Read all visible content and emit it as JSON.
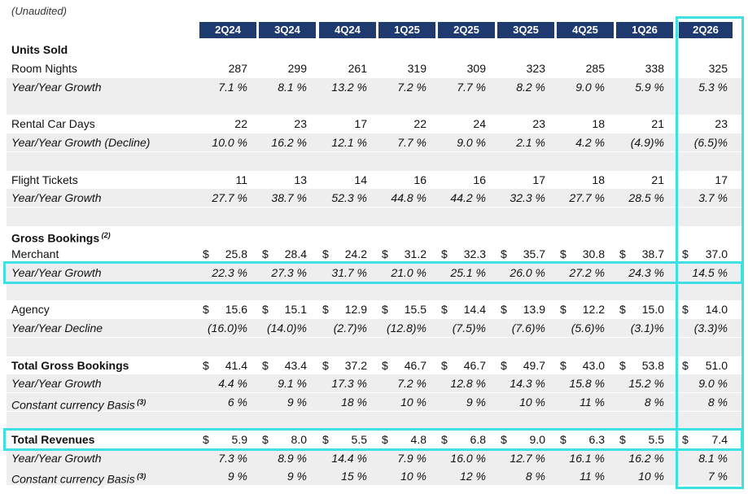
{
  "note": "(Unaudited)",
  "quarters": [
    "2Q24",
    "3Q24",
    "4Q24",
    "1Q25",
    "2Q25",
    "3Q25",
    "4Q25",
    "1Q26",
    "2Q26"
  ],
  "highlight_color": "#3fe0e5",
  "header_color": "#1e3a6e",
  "rows": [
    {
      "label": "Units Sold",
      "style": "bold",
      "values": []
    },
    {
      "label": "Room Nights",
      "style": "normal",
      "values": [
        "287",
        "299",
        "261",
        "319",
        "309",
        "323",
        "285",
        "338",
        "325"
      ]
    },
    {
      "label": "Year/Year Growth",
      "style": "italic",
      "values": [
        "7.1 %",
        "8.1 %",
        "13.2 %",
        "7.2 %",
        "7.7 %",
        "8.2 %",
        "9.0 %",
        "5.9 %",
        "5.3 %"
      ]
    },
    {
      "label": "",
      "style": "gap",
      "values": []
    },
    {
      "label": "Rental Car Days",
      "style": "normal",
      "values": [
        "22",
        "23",
        "17",
        "22",
        "24",
        "23",
        "18",
        "21",
        "23"
      ]
    },
    {
      "label": "Year/Year Growth (Decline)",
      "style": "italic",
      "values": [
        "10.0 %",
        "16.2 %",
        "12.1 %",
        "7.7 %",
        "9.0 %",
        "2.1 %",
        "4.2 %",
        "(4.9)%",
        "(6.5)%"
      ]
    },
    {
      "label": "",
      "style": "gap",
      "values": []
    },
    {
      "label": "Flight Tickets",
      "style": "normal",
      "values": [
        "11",
        "13",
        "14",
        "16",
        "16",
        "17",
        "18",
        "21",
        "17"
      ]
    },
    {
      "label": "Year/Year Growth",
      "style": "italic",
      "values": [
        "27.7 %",
        "38.7 %",
        "52.3 %",
        "44.8 %",
        "44.2 %",
        "32.3 %",
        "27.7 %",
        "28.5 %",
        "3.7 %"
      ]
    },
    {
      "label": "",
      "style": "gap",
      "values": []
    },
    {
      "label": "Gross Bookings",
      "sup": "(2)",
      "style": "bold",
      "values": []
    },
    {
      "label": "Merchant",
      "style": "normal",
      "dollar": true,
      "values": [
        "25.8",
        "28.4",
        "24.2",
        "31.2",
        "32.3",
        "35.7",
        "30.8",
        "38.7",
        "37.0"
      ]
    },
    {
      "label": "Year/Year Growth",
      "style": "italic",
      "values": [
        "22.3 %",
        "27.3 %",
        "31.7 %",
        "21.0 %",
        "25.1 %",
        "26.0 %",
        "27.2 %",
        "24.3 %",
        "14.5 %"
      ]
    },
    {
      "label": "",
      "style": "gap",
      "values": []
    },
    {
      "label": "Agency",
      "style": "normal",
      "dollar": true,
      "values": [
        "15.6",
        "15.1",
        "12.9",
        "15.5",
        "14.4",
        "13.9",
        "12.2",
        "15.0",
        "14.0"
      ]
    },
    {
      "label": "Year/Year Decline",
      "style": "italic",
      "values": [
        "(16.0)%",
        "(14.0)%",
        "(2.7)%",
        "(12.8)%",
        "(7.5)%",
        "(7.6)%",
        "(5.6)%",
        "(3.1)%",
        "(3.3)%"
      ]
    },
    {
      "label": "",
      "style": "gap",
      "values": []
    },
    {
      "label": "Total Gross Bookings",
      "style": "bold",
      "dollar": true,
      "values": [
        "41.4",
        "43.4",
        "37.2",
        "46.7",
        "46.7",
        "49.7",
        "43.0",
        "53.8",
        "51.0"
      ]
    },
    {
      "label": "Year/Year Growth",
      "style": "italic",
      "values": [
        "4.4 %",
        "9.1 %",
        "17.3 %",
        "7.2 %",
        "12.8 %",
        "14.3 %",
        "15.8 %",
        "15.2 %",
        "9.0 %"
      ]
    },
    {
      "label": "Constant currency Basis",
      "sup": "(3)",
      "style": "italic",
      "values": [
        "6 %",
        "9 %",
        "18 %",
        "10 %",
        "9 %",
        "10 %",
        "11 %",
        "8 %",
        "8 %"
      ]
    },
    {
      "label": "",
      "style": "gap",
      "values": []
    },
    {
      "label": "Total Revenues",
      "style": "bold",
      "dollar": true,
      "values": [
        "5.9",
        "8.0",
        "5.5",
        "4.8",
        "6.8",
        "9.0",
        "6.3",
        "5.5",
        "7.4"
      ]
    },
    {
      "label": "Year/Year Growth",
      "style": "italic",
      "values": [
        "7.3 %",
        "8.9 %",
        "14.4 %",
        "7.9 %",
        "16.0 %",
        "12.7 %",
        "16.1 %",
        "16.2 %",
        "8.1 %"
      ]
    },
    {
      "label": "Constant currency Basis",
      "sup": "(3)",
      "style": "italic",
      "values": [
        "9 %",
        "9 %",
        "15 %",
        "10 %",
        "12 %",
        "8 %",
        "11 %",
        "10 %",
        "7 %"
      ]
    }
  ],
  "highlighted_rows": [
    "Year/Year Growth (Merchant)",
    "Total Revenues"
  ],
  "highlighted_column": "2Q26"
}
